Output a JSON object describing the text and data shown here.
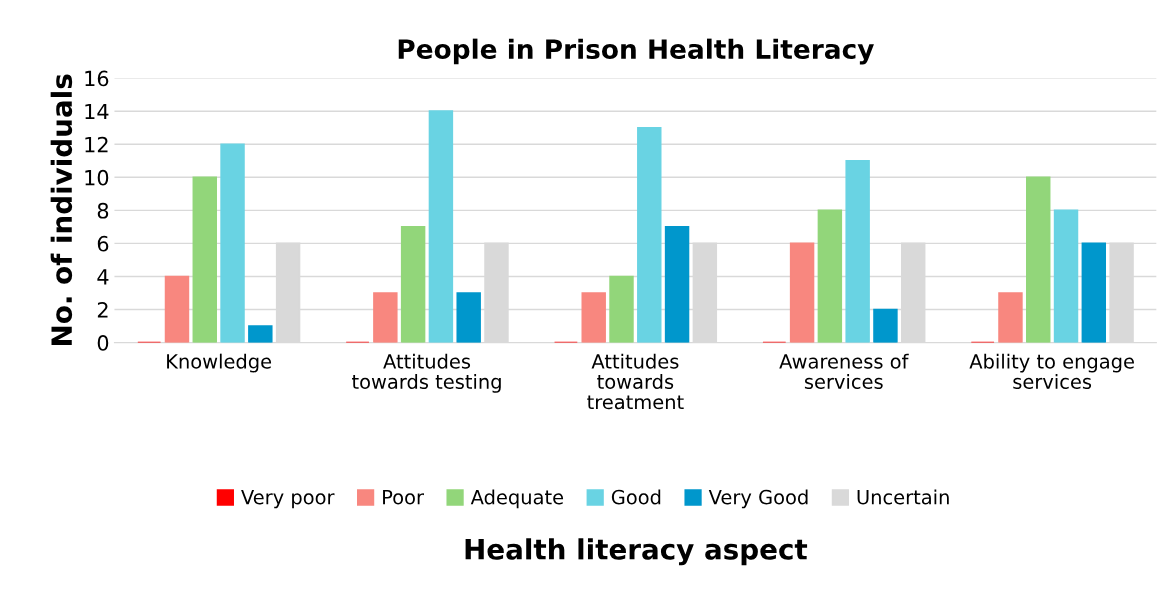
{
  "chart_data": {
    "type": "bar",
    "title": "People in Prison Health Literacy",
    "xlabel": "Health literacy aspect",
    "ylabel": "No. of individuals",
    "categories": [
      "Knowledge",
      "Attitudes\ntowards testing",
      "Attitudes\ntowards\ntreatment",
      "Awareness of\nservices",
      "Ability to engage\nservices"
    ],
    "series": [
      {
        "name": "Very poor",
        "color": "#ff0000",
        "values": [
          0,
          0,
          0,
          0,
          0
        ]
      },
      {
        "name": "Poor",
        "color": "#f8877f",
        "values": [
          4,
          3,
          3,
          6,
          3
        ]
      },
      {
        "name": "Adequate",
        "color": "#92d67a",
        "values": [
          10,
          7,
          4,
          8,
          10
        ]
      },
      {
        "name": "Good",
        "color": "#69d3e3",
        "values": [
          12,
          14,
          13,
          11,
          8
        ]
      },
      {
        "name": "Very Good",
        "color": "#0097cc",
        "values": [
          1,
          3,
          7,
          2,
          6
        ]
      },
      {
        "name": "Uncertain",
        "color": "#d9d9d9",
        "values": [
          6,
          6,
          6,
          6,
          6
        ]
      }
    ],
    "ylim": [
      0,
      16
    ],
    "yticks": [
      0,
      2,
      4,
      6,
      8,
      10,
      12,
      14,
      16
    ],
    "grid": "y",
    "legend": "bottom"
  }
}
